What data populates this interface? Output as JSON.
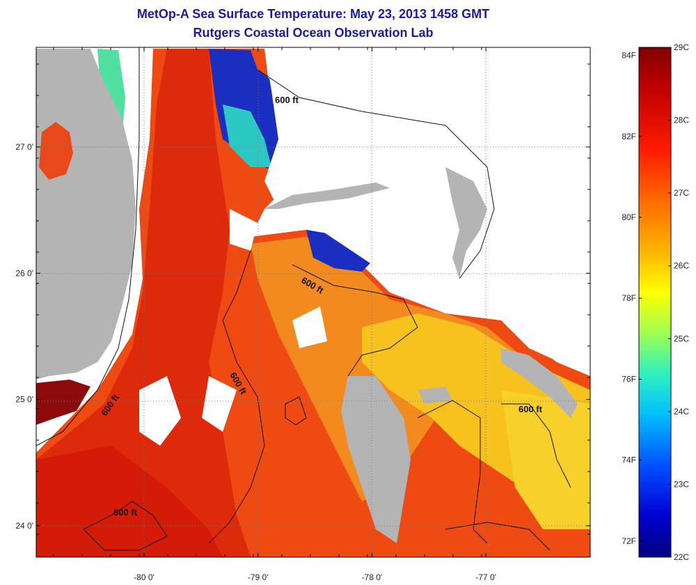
{
  "title": "MetOp-A Sea Surface Temperature:  May 23, 2013 1458 GMT",
  "subtitle": "Rutgers Coastal Ocean Observation Lab",
  "lat_ticks": [
    {
      "value": 27,
      "label": "27 0'"
    },
    {
      "value": 26,
      "label": "26 0'"
    },
    {
      "value": 25,
      "label": "25 0'"
    },
    {
      "value": 24,
      "label": "24 0'"
    }
  ],
  "lon_ticks": [
    {
      "value": -80,
      "label": "-80 0'"
    },
    {
      "value": -79,
      "label": "-79 0'"
    },
    {
      "value": -78,
      "label": "-78 0'"
    },
    {
      "value": -77,
      "label": "-77 0'"
    }
  ],
  "contour_labels": [
    {
      "text": "600 ft"
    },
    {
      "text": "600 ft"
    },
    {
      "text": "600 ft"
    },
    {
      "text": "600 ft"
    },
    {
      "text": "600 ft"
    },
    {
      "text": "600 ft"
    }
  ],
  "colorbar": {
    "celsius": [
      "29C",
      "28C",
      "27C",
      "26C",
      "25C",
      "24C",
      "23C",
      "22C"
    ],
    "fahrenheit": [
      "84F",
      "82F",
      "80F",
      "78F",
      "76F",
      "74F",
      "72F"
    ],
    "colors": [
      "#800000",
      "#c80000",
      "#ff2a00",
      "#ff7a00",
      "#ffc000",
      "#f0f000",
      "#a0ff50",
      "#30e0c0",
      "#00a0ff",
      "#0040ff",
      "#0000b0",
      "#000080"
    ]
  },
  "colors": {
    "land": "#b4b4b4",
    "warm": "#ee3d0f",
    "hot": "#d41b08",
    "orange": "#f47a17",
    "yellow": "#f7c51d",
    "cold": "#1626b0",
    "cyan": "#2bd7c8"
  }
}
